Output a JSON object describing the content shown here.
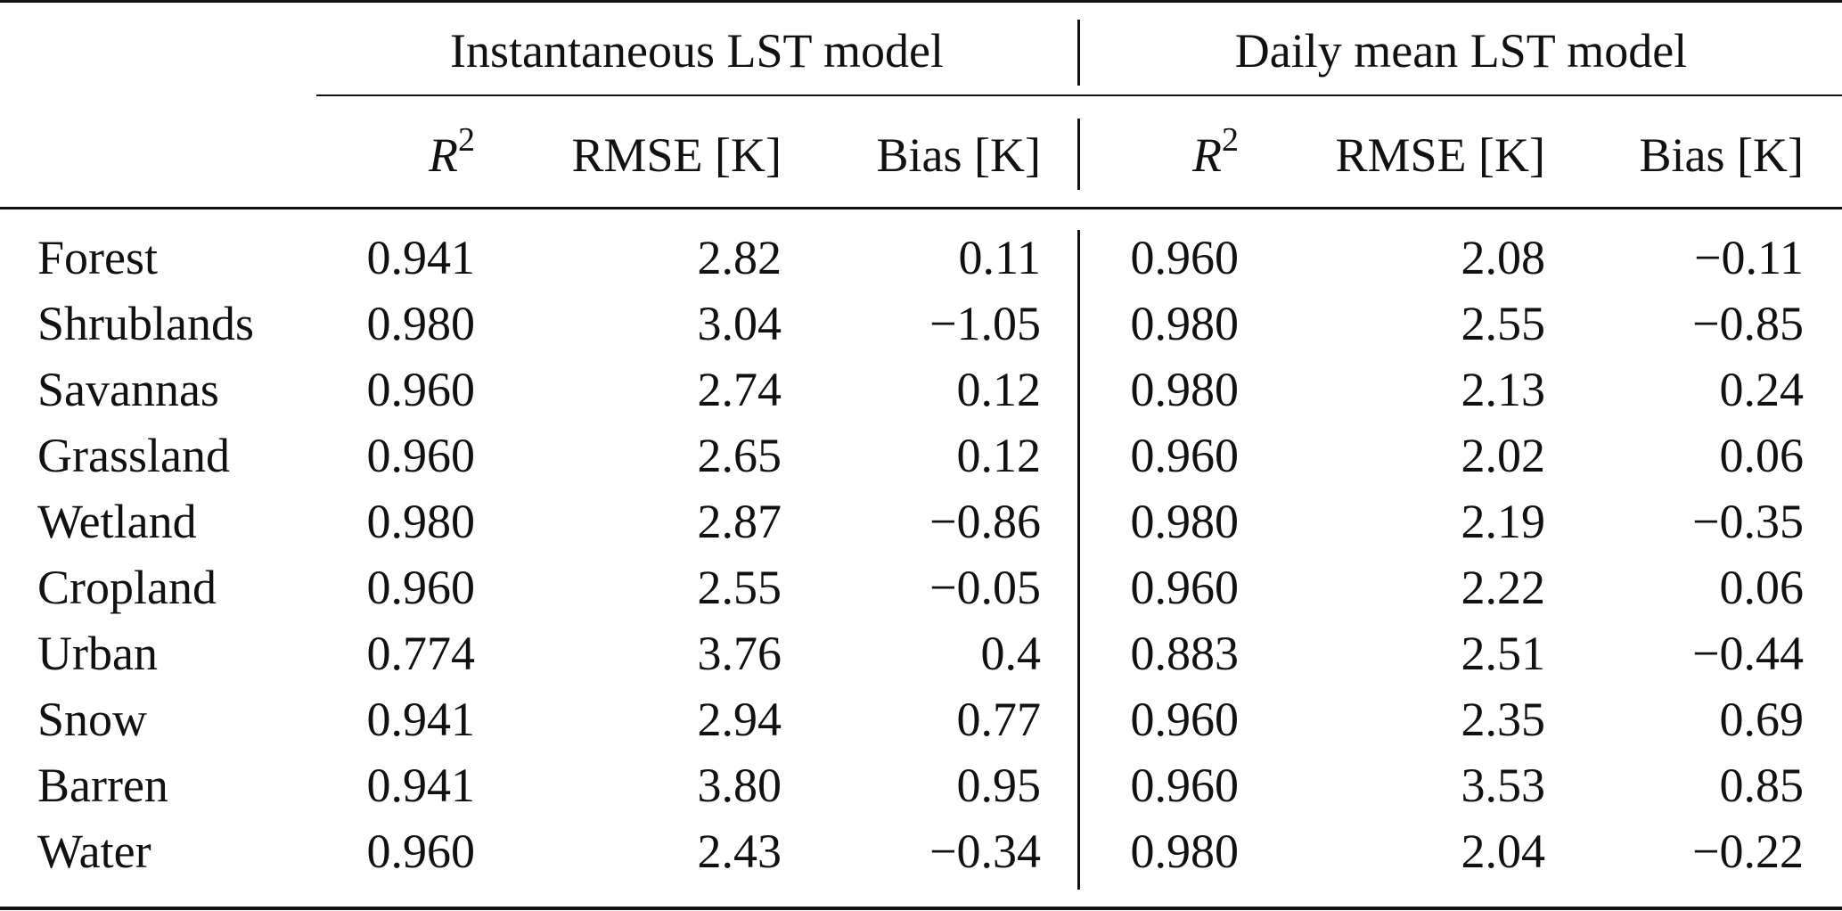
{
  "groups": {
    "instantaneous": "Instantaneous LST model",
    "daily": "Daily mean LST model"
  },
  "columns": {
    "r2_base": "R",
    "r2_sup": "2",
    "rmse": "RMSE [K]",
    "bias": "Bias [K]"
  },
  "rows": [
    {
      "label": "Forest",
      "inst_r2": "0.941",
      "inst_rmse": "2.82",
      "inst_bias": "0.11",
      "daily_r2": "0.960",
      "daily_rmse": "2.08",
      "daily_bias": "−0.11"
    },
    {
      "label": "Shrublands",
      "inst_r2": "0.980",
      "inst_rmse": "3.04",
      "inst_bias": "−1.05",
      "daily_r2": "0.980",
      "daily_rmse": "2.55",
      "daily_bias": "−0.85"
    },
    {
      "label": "Savannas",
      "inst_r2": "0.960",
      "inst_rmse": "2.74",
      "inst_bias": "0.12",
      "daily_r2": "0.980",
      "daily_rmse": "2.13",
      "daily_bias": "0.24"
    },
    {
      "label": "Grassland",
      "inst_r2": "0.960",
      "inst_rmse": "2.65",
      "inst_bias": "0.12",
      "daily_r2": "0.960",
      "daily_rmse": "2.02",
      "daily_bias": "0.06"
    },
    {
      "label": "Wetland",
      "inst_r2": "0.980",
      "inst_rmse": "2.87",
      "inst_bias": "−0.86",
      "daily_r2": "0.980",
      "daily_rmse": "2.19",
      "daily_bias": "−0.35"
    },
    {
      "label": "Cropland",
      "inst_r2": "0.960",
      "inst_rmse": "2.55",
      "inst_bias": "−0.05",
      "daily_r2": "0.960",
      "daily_rmse": "2.22",
      "daily_bias": "0.06"
    },
    {
      "label": "Urban",
      "inst_r2": "0.774",
      "inst_rmse": "3.76",
      "inst_bias": "0.4",
      "daily_r2": "0.883",
      "daily_rmse": "2.51",
      "daily_bias": "−0.44"
    },
    {
      "label": "Snow",
      "inst_r2": "0.941",
      "inst_rmse": "2.94",
      "inst_bias": "0.77",
      "daily_r2": "0.960",
      "daily_rmse": "2.35",
      "daily_bias": "0.69"
    },
    {
      "label": "Barren",
      "inst_r2": "0.941",
      "inst_rmse": "3.80",
      "inst_bias": "0.95",
      "daily_r2": "0.960",
      "daily_rmse": "3.53",
      "daily_bias": "0.85"
    },
    {
      "label": "Water",
      "inst_r2": "0.960",
      "inst_rmse": "2.43",
      "inst_bias": "−0.34",
      "daily_r2": "0.980",
      "daily_rmse": "2.04",
      "daily_bias": "−0.22"
    }
  ]
}
